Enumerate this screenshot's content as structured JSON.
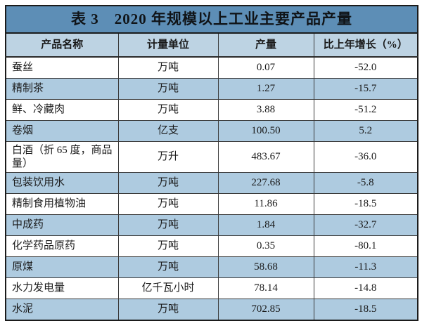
{
  "table": {
    "title": "表 3　2020 年规模以上工业主要产品产量",
    "columns": {
      "product": "产品名称",
      "unit": "计量单位",
      "output": "产量",
      "growth": "比上年增长（%）"
    },
    "rows": [
      {
        "name": "蚕丝",
        "unit": "万吨",
        "output": "0.07",
        "growth": "-52.0"
      },
      {
        "name": "精制茶",
        "unit": "万吨",
        "output": "1.27",
        "growth": "-15.7"
      },
      {
        "name": "鲜、冷藏肉",
        "unit": "万吨",
        "output": "3.88",
        "growth": "-51.2"
      },
      {
        "name": "卷烟",
        "unit": "亿支",
        "output": "100.50",
        "growth": "5.2"
      },
      {
        "name": "白酒（折 65 度，商品量）",
        "unit": "万升",
        "output": "483.67",
        "growth": "-36.0"
      },
      {
        "name": "包装饮用水",
        "unit": "万吨",
        "output": "227.68",
        "growth": "-5.8"
      },
      {
        "name": "精制食用植物油",
        "unit": "万吨",
        "output": "11.86",
        "growth": "-18.5"
      },
      {
        "name": "中成药",
        "unit": "万吨",
        "output": "1.84",
        "growth": "-32.7"
      },
      {
        "name": "化学药品原药",
        "unit": "万吨",
        "output": "0.35",
        "growth": "-80.1"
      },
      {
        "name": "原煤",
        "unit": "万吨",
        "output": "58.68",
        "growth": "-11.3"
      },
      {
        "name": "水力发电量",
        "unit": "亿千瓦小时",
        "output": "78.14",
        "growth": "-14.8"
      },
      {
        "name": "水泥",
        "unit": "万吨",
        "output": "702.85",
        "growth": "-18.5"
      }
    ],
    "colors": {
      "title_bg": "#5d8eb6",
      "header_bg": "#bdd3e3",
      "stripe_bg": "#aecbe0",
      "border": "#1b1b1b"
    }
  }
}
